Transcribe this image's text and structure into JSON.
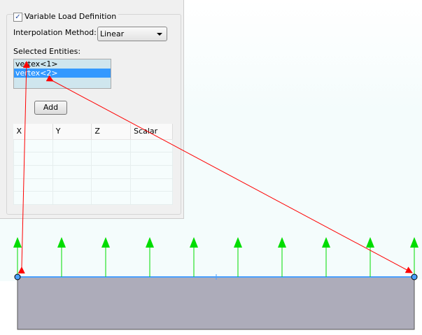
{
  "panel": {
    "variable_load_label": "Variable Load Definition",
    "variable_load_checked": true,
    "check_glyph": "✓",
    "interpolation_label": "Interpolation Method:",
    "interpolation_value": "Linear",
    "selected_entities_label": "Selected Entities:",
    "entities": [
      {
        "label": "vertex<1>",
        "selected": false
      },
      {
        "label": "vertex<2>",
        "selected": true
      }
    ],
    "add_label": "Add",
    "table": {
      "columns": [
        "X",
        "Y",
        "Z",
        "Scalar"
      ],
      "rows": 5
    }
  },
  "colors": {
    "load_arrow": "#00dd00",
    "callout": "#ff0000",
    "part": "#adacba",
    "edge": "#4aa0ff"
  },
  "load_arrow_count": 10
}
